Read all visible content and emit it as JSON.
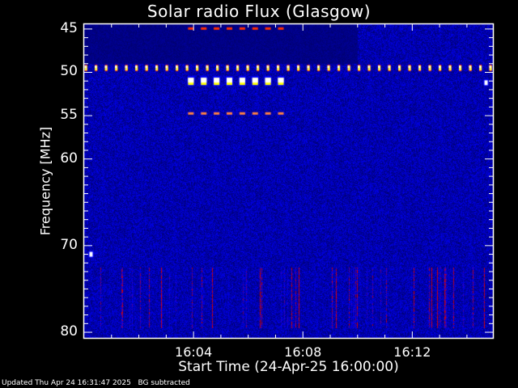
{
  "chart_data": {
    "type": "heatmap",
    "title": "Solar radio Flux (Glasgow)",
    "xlabel": "Start Time (24-Apr-25 16:00:00)",
    "ylabel": "Frequency [MHz]",
    "x_unit": "minutes after 16:00",
    "xlim": [
      0,
      14.95
    ],
    "ylim": [
      80.65,
      44.45
    ],
    "y_ticks": [
      {
        "value": 45,
        "label": "45"
      },
      {
        "value": 50,
        "label": "50"
      },
      {
        "value": 55,
        "label": "55"
      },
      {
        "value": 60,
        "label": "60"
      },
      {
        "value": 70,
        "label": "70"
      },
      {
        "value": 80,
        "label": "80"
      }
    ],
    "x_ticks": [
      {
        "value": 4,
        "label": "16:04"
      },
      {
        "value": 8,
        "label": "16:08"
      },
      {
        "value": 12,
        "label": "16:12"
      }
    ],
    "colormap": [
      "#00007a",
      "#0000ff",
      "#ff0000",
      "#ff8040",
      "#ffff00",
      "#ffffff"
    ],
    "features": [
      {
        "kind": "periodic-line",
        "freq": 49.5,
        "start": 0,
        "end": 14.95,
        "period": 0.37,
        "intensity": 0.9
      },
      {
        "kind": "blocks",
        "freq": 51.0,
        "start": 3.8,
        "end": 7.1,
        "period": 0.47,
        "intensity": 1.0
      },
      {
        "kind": "blocks",
        "freq": 54.7,
        "start": 3.8,
        "end": 7.1,
        "period": 0.47,
        "intensity": 0.7
      },
      {
        "kind": "blocks",
        "freq": 44.9,
        "start": 3.8,
        "end": 7.1,
        "period": 0.47,
        "intensity": 0.6
      },
      {
        "kind": "spot",
        "freq": 71.0,
        "time": 0.25,
        "intensity": 1.0
      },
      {
        "kind": "spot",
        "freq": 51.2,
        "time": 14.7,
        "intensity": 0.9
      }
    ],
    "quiet_band": {
      "freq_range": [
        44.45,
        49.0
      ],
      "time_range": [
        0,
        10.0
      ]
    },
    "streak_band": {
      "freq_range": [
        72.5,
        79.5
      ]
    }
  },
  "footer": {
    "updated": "Updated Thu Apr 24 16:31:47 2025",
    "note": "BG subtracted"
  }
}
